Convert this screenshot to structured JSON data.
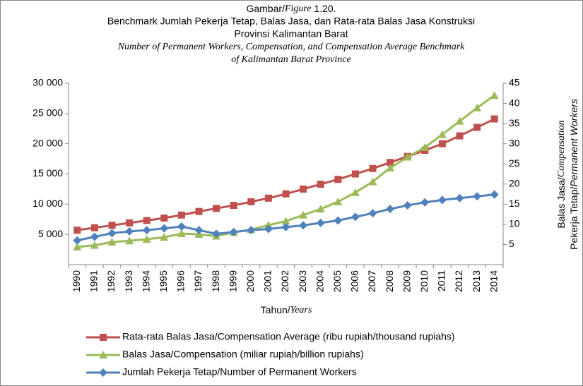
{
  "chart_data": {
    "type": "line",
    "title": [
      "Gambar/",
      "Figure",
      " 1.20."
    ],
    "subtitle": [
      "Benchmark Jumlah Pekerja Tetap, Balas Jasa, dan Rata-rata Balas Jasa Konstruksi",
      "Provinsi Kalimantan Barat"
    ],
    "subtitle_en": [
      "Number of Permanent Workers, Compensation, and Compensation Average Benchmark",
      "of Kalimantan Barat Province"
    ],
    "x_label": [
      "Tahun/",
      "Years"
    ],
    "y2_label": [
      [
        "Balas Jasa/",
        "Compensation"
      ],
      [
        "Pekerja Tetap/",
        "Permanent Workers"
      ]
    ],
    "categories": [
      "1990",
      "1991",
      "1992",
      "1993",
      "1994",
      "1995",
      "1996",
      "1997",
      "1998",
      "1999",
      "2000",
      "2001",
      "2002",
      "2003",
      "2004",
      "2005",
      "2006",
      "2007",
      "2008",
      "2009",
      "2010",
      "2011",
      "2012",
      "2013",
      "2014"
    ],
    "ylim": [
      0,
      30000
    ],
    "yticks": [
      {
        "value": 5000,
        "label": "5 000"
      },
      {
        "value": 10000,
        "label": "10 000"
      },
      {
        "value": 15000,
        "label": "15 000"
      },
      {
        "value": 20000,
        "label": "20 000"
      },
      {
        "value": 25000,
        "label": "25 000"
      },
      {
        "value": 30000,
        "label": "30 000"
      }
    ],
    "y2lim": [
      0,
      45
    ],
    "y2ticks": [
      5,
      10,
      15,
      20,
      25,
      30,
      35,
      40,
      45
    ],
    "series": [
      {
        "name": "Rata-rata Balas Jasa/Compensation Average (ribu rupiah/thousand rupiahs)",
        "color": "#c0504d",
        "marker": "square",
        "values": [
          5700,
          6100,
          6500,
          6900,
          7300,
          7700,
          8200,
          8800,
          9300,
          9800,
          10400,
          11000,
          11700,
          12500,
          13300,
          14100,
          15000,
          15900,
          16900,
          17900,
          18900,
          20000,
          21300,
          22700,
          24100
        ]
      },
      {
        "name": "Balas Jasa/Compensation (miliar rupiah/billion rupiahs)",
        "color": "#9bbb59",
        "marker": "triangle",
        "axis": "y2",
        "values": [
          4.4,
          4.8,
          5.6,
          5.9,
          6.3,
          6.8,
          7.7,
          7.5,
          7.1,
          8,
          8.7,
          9.8,
          10.8,
          12.3,
          13.8,
          15.6,
          17.9,
          20.6,
          24,
          26.7,
          29.1,
          32.3,
          35.6,
          38.9,
          42
        ]
      },
      {
        "name": "Jumlah Pekerja Tetap/Number of Permanent Workers",
        "color": "#4f81bd",
        "marker": "diamond",
        "values": [
          4000,
          4600,
          5200,
          5500,
          5700,
          6000,
          6300,
          5700,
          5100,
          5400,
          5700,
          5900,
          6200,
          6500,
          6900,
          7300,
          7900,
          8500,
          9200,
          9800,
          10300,
          10700,
          11000,
          11300,
          11600
        ]
      }
    ]
  }
}
